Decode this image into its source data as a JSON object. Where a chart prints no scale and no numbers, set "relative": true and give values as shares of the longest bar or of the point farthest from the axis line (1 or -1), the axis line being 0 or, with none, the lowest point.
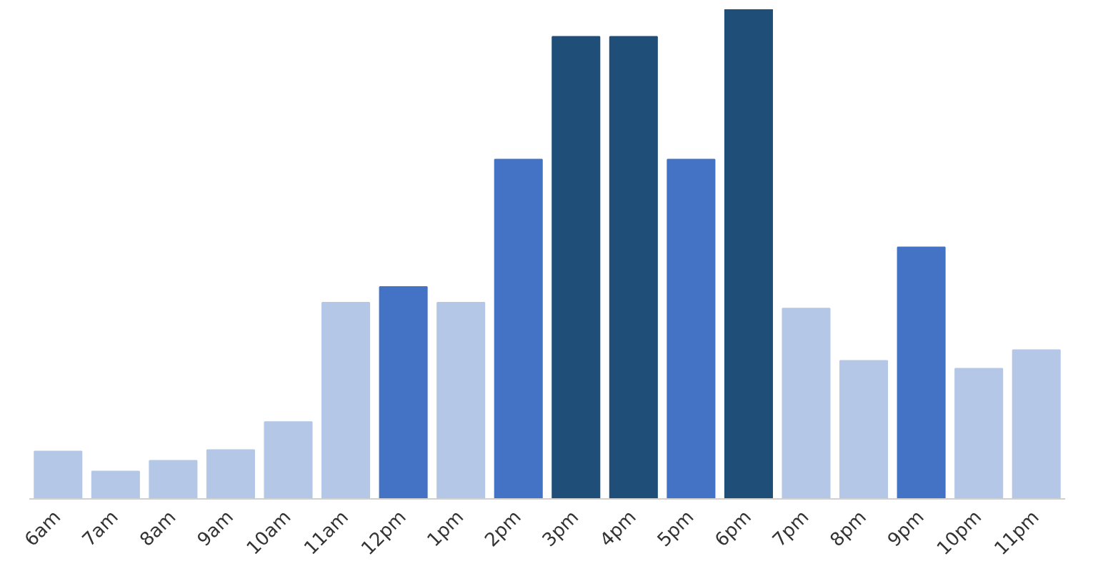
{
  "chart_data": {
    "type": "bar",
    "relative": true,
    "categories": [
      "6am",
      "7am",
      "8am",
      "9am",
      "10am",
      "11am",
      "12pm",
      "1pm",
      "2pm",
      "3pm",
      "4pm",
      "5pm",
      "6pm",
      "7pm",
      "8pm",
      "9pm",
      "10pm",
      "11pm"
    ],
    "values": [
      0.097,
      0.056,
      0.078,
      0.1,
      0.157,
      0.401,
      0.433,
      0.401,
      0.693,
      0.944,
      0.944,
      0.693,
      1,
      0.389,
      0.282,
      0.514,
      0.266,
      0.304
    ],
    "colors": [
      "#b4c7e7",
      "#b4c7e7",
      "#b4c7e7",
      "#b4c7e7",
      "#b4c7e7",
      "#b4c7e7",
      "#4472c4",
      "#b4c7e7",
      "#4472c4",
      "#1f4e79",
      "#1f4e79",
      "#4472c4",
      "#1f4e79",
      "#b4c7e7",
      "#b4c7e7",
      "#4472c4",
      "#b4c7e7",
      "#b4c7e7"
    ],
    "grid": false
  }
}
